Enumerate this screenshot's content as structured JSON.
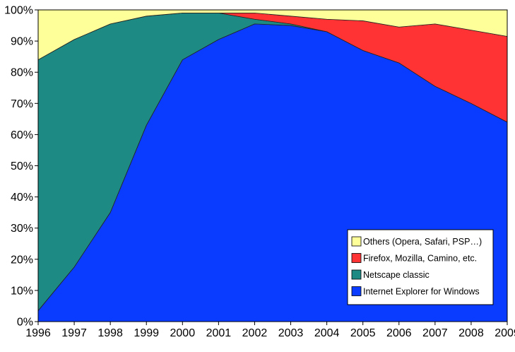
{
  "chart_data": {
    "type": "area",
    "stacked": true,
    "x": [
      1996,
      1997,
      1998,
      1999,
      2000,
      2001,
      2002,
      2003,
      2004,
      2005,
      2006,
      2007,
      2008,
      2009
    ],
    "ylim": [
      0,
      100
    ],
    "yticks": [
      "0%",
      "10%",
      "20%",
      "30%",
      "40%",
      "50%",
      "60%",
      "70%",
      "80%",
      "90%",
      "100%"
    ],
    "xticks": [
      "1996",
      "1997",
      "1998",
      "1999",
      "2000",
      "2001",
      "2002",
      "2003",
      "2004",
      "2005",
      "2006",
      "2007",
      "2008",
      "2009"
    ],
    "series": [
      {
        "name": "Internet Explorer for Windows",
        "color": "#0a3cff",
        "values": [
          3.5,
          17.5,
          35,
          63,
          84,
          90.5,
          95.5,
          95,
          93,
          87,
          83,
          75.5,
          70,
          64
        ]
      },
      {
        "name": "Netscape classic",
        "color": "#1e8a84",
        "values": [
          80.5,
          73,
          60.5,
          35,
          15,
          8.5,
          1.5,
          0.5,
          0,
          0,
          0,
          0,
          0,
          0
        ]
      },
      {
        "name": "Firefox, Mozilla, Camino, etc.",
        "color": "#ff3333",
        "values": [
          0,
          0,
          0,
          0,
          0,
          0,
          2,
          2.5,
          4,
          9.5,
          11.5,
          20,
          23.5,
          27.5
        ]
      },
      {
        "name": "Others (Opera, Safari, PSP…)",
        "color": "#ffff99",
        "values": [
          16,
          9.5,
          4.5,
          2,
          1,
          1,
          1,
          2,
          3,
          3.5,
          5.5,
          4.5,
          6.5,
          8.5
        ]
      }
    ],
    "legend_order": [
      3,
      2,
      1,
      0
    ],
    "legend_position": "bottom-right",
    "grid": false
  }
}
